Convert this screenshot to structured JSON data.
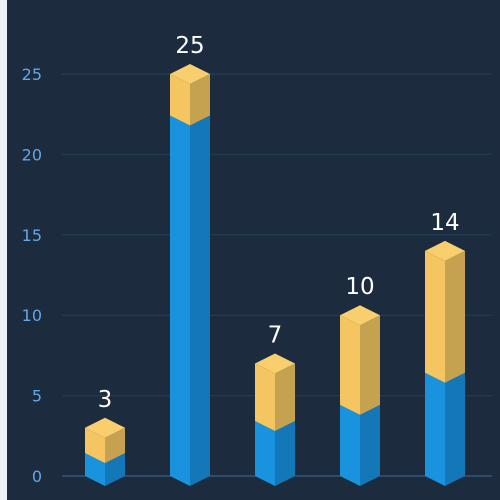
{
  "chart_data": {
    "type": "bar",
    "stacked": true,
    "style": "3d-cylinder",
    "title": "",
    "xlabel": "",
    "ylabel": "",
    "categories": [
      "",
      "",
      "",
      "",
      ""
    ],
    "ylim": [
      0,
      28
    ],
    "yticks": [
      0,
      5,
      10,
      15,
      20,
      25
    ],
    "grid": true,
    "series": [
      {
        "values": [
          0.8,
          21.8,
          2.8,
          3.8,
          5.8
        ],
        "color": "#1a93de"
      },
      {
        "values": [
          2.2,
          3.2,
          4.2,
          6.2,
          8.2
        ],
        "color": "#f5c562"
      }
    ],
    "totals": [
      3,
      25,
      7,
      10,
      14
    ],
    "colors": {
      "background": "#1c2b3e",
      "grid": "#22405a",
      "axis": "#3a6d98",
      "tick_text": "#62a7e8",
      "label_text": "#ffffff",
      "lower_front": "#1a93de",
      "lower_side": "#1478b8",
      "upper_front": "#f5c562",
      "upper_side": "#c4a24f",
      "upper_top": "#f8cf6c"
    }
  }
}
